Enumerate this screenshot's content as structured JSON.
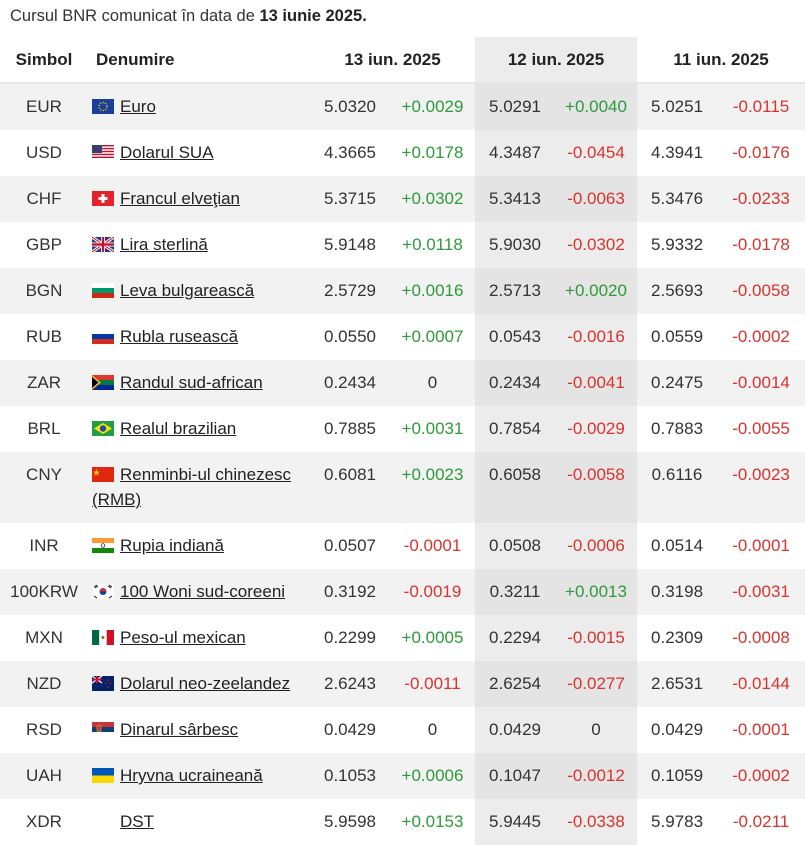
{
  "caption": {
    "prefix": "Cursul BNR comunicat în data de",
    "date": "13 iunie 2025."
  },
  "table": {
    "header": {
      "symbol": "Simbol",
      "name": "Denumire",
      "dates": [
        "13 iun. 2025",
        "12 iun. 2025",
        "11 iun. 2025"
      ]
    },
    "rows": [
      {
        "symbol": "EUR",
        "name": "Euro",
        "values": [
          "5.0320",
          "+0.0029",
          "5.0291",
          "+0.0040",
          "5.0251",
          "-0.0115"
        ]
      },
      {
        "symbol": "USD",
        "name": "Dolarul SUA",
        "values": [
          "4.3665",
          "+0.0178",
          "4.3487",
          "-0.0454",
          "4.3941",
          "-0.0176"
        ]
      },
      {
        "symbol": "CHF",
        "name": "Francul elveţian",
        "values": [
          "5.3715",
          "+0.0302",
          "5.3413",
          "-0.0063",
          "5.3476",
          "-0.0233"
        ]
      },
      {
        "symbol": "GBP",
        "name": "Lira sterlină",
        "values": [
          "5.9148",
          "+0.0118",
          "5.9030",
          "-0.0302",
          "5.9332",
          "-0.0178"
        ]
      },
      {
        "symbol": "BGN",
        "name": "Leva bulgarească",
        "values": [
          "2.5729",
          "+0.0016",
          "2.5713",
          "+0.0020",
          "2.5693",
          "-0.0058"
        ]
      },
      {
        "symbol": "RUB",
        "name": "Rubla rusească",
        "values": [
          "0.0550",
          "+0.0007",
          "0.0543",
          "-0.0016",
          "0.0559",
          "-0.0002"
        ]
      },
      {
        "symbol": "ZAR",
        "name": "Randul sud-african",
        "values": [
          "0.2434",
          "0",
          "0.2434",
          "-0.0041",
          "0.2475",
          "-0.0014"
        ]
      },
      {
        "symbol": "BRL",
        "name": "Realul brazilian",
        "values": [
          "0.7885",
          "+0.0031",
          "0.7854",
          "-0.0029",
          "0.7883",
          "-0.0055"
        ]
      },
      {
        "symbol": "CNY",
        "name": "Renminbi-ul chinezesc (RMB)",
        "values": [
          "0.6081",
          "+0.0023",
          "0.6058",
          "-0.0058",
          "0.6116",
          "-0.0023"
        ]
      },
      {
        "symbol": "INR",
        "name": "Rupia indiană",
        "values": [
          "0.0507",
          "-0.0001",
          "0.0508",
          "-0.0006",
          "0.0514",
          "-0.0001"
        ]
      },
      {
        "symbol": "100KRW",
        "name": "100 Woni sud-coreeni",
        "values": [
          "0.3192",
          "-0.0019",
          "0.3211",
          "+0.0013",
          "0.3198",
          "-0.0031"
        ]
      },
      {
        "symbol": "MXN",
        "name": "Peso-ul mexican",
        "values": [
          "0.2299",
          "+0.0005",
          "0.2294",
          "-0.0015",
          "0.2309",
          "-0.0008"
        ]
      },
      {
        "symbol": "NZD",
        "name": "Dolarul neo-zeelandez",
        "values": [
          "2.6243",
          "-0.0011",
          "2.6254",
          "-0.0277",
          "2.6531",
          "-0.0144"
        ]
      },
      {
        "symbol": "RSD",
        "name": "Dinarul sârbesc",
        "values": [
          "0.0429",
          "0",
          "0.0429",
          "0",
          "0.0429",
          "-0.0001"
        ]
      },
      {
        "symbol": "UAH",
        "name": "Hryvna ucraineană",
        "values": [
          "0.1053",
          "+0.0006",
          "0.1047",
          "-0.0012",
          "0.1059",
          "-0.0002"
        ]
      },
      {
        "symbol": "XDR",
        "name": "DST",
        "values": [
          "5.9598",
          "+0.0153",
          "5.9445",
          "-0.0338",
          "5.9783",
          "-0.0211"
        ]
      }
    ]
  }
}
